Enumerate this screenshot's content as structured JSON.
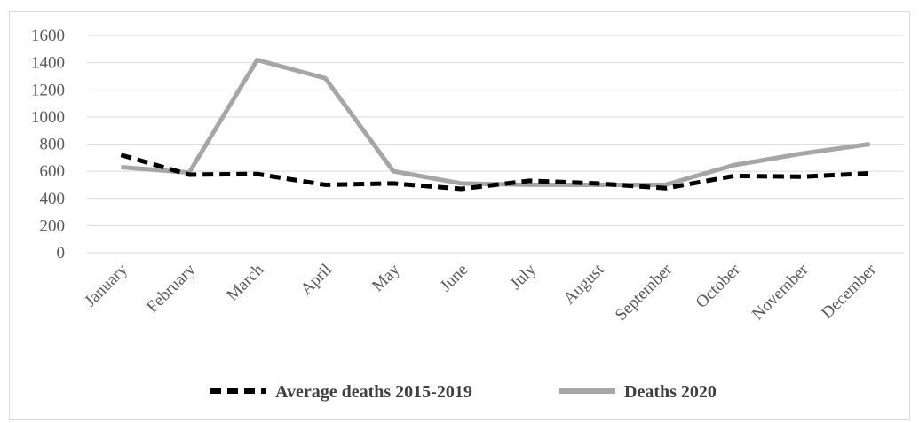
{
  "chart_data": {
    "type": "line",
    "title": "",
    "xlabel": "",
    "ylabel": "",
    "categories": [
      "January",
      "February",
      "March",
      "April",
      "May",
      "June",
      "July",
      "August",
      "September",
      "October",
      "November",
      "December"
    ],
    "ylim": [
      0,
      1600
    ],
    "yticks": [
      "0",
      "200",
      "400",
      "600",
      "800",
      "1000",
      "1200",
      "1400",
      "1600"
    ],
    "grid": true,
    "legend_position": "bottom",
    "series": [
      {
        "name": "Average deaths 2015-2019",
        "values": [
          720,
          575,
          580,
          500,
          510,
          470,
          530,
          510,
          475,
          565,
          560,
          585
        ],
        "color": "#000000",
        "style": "dashed"
      },
      {
        "name": "Deaths 2020",
        "values": [
          630,
          590,
          1420,
          1285,
          600,
          510,
          500,
          500,
          500,
          645,
          730,
          800
        ],
        "color": "#a6a6a6",
        "style": "solid"
      }
    ]
  }
}
